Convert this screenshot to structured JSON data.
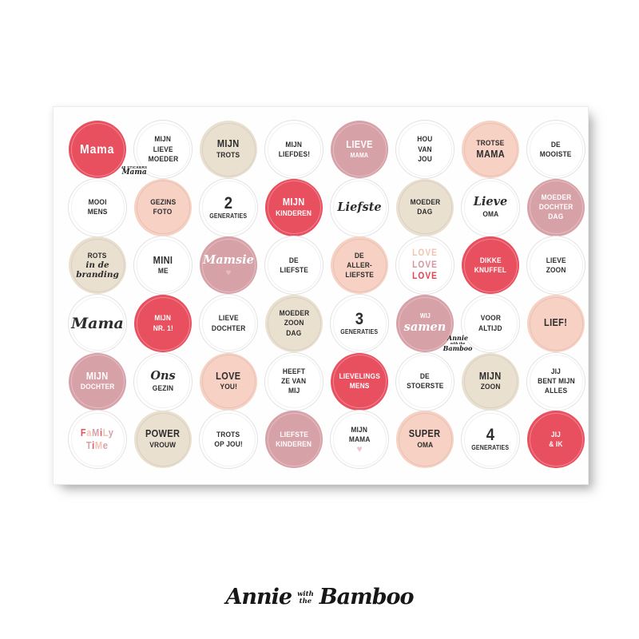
{
  "colors": {
    "red": "#e8505f",
    "rose": "#d7a1a8",
    "peach": "#f7d1c3",
    "cream": "#e9e0d0",
    "ink": "#2d2d2d",
    "love_peach": "#f2c3b2",
    "love_rose": "#d494a0",
    "love_red": "#e83f4e",
    "heart_on_rose": "#e3bcc1",
    "heart_pink": "#f3c2c9"
  },
  "sheet": {
    "corner_label": {
      "count": "48 STICKERS",
      "theme": "Mama"
    },
    "mini_signature": {
      "line1": "Annie",
      "line2": "with the",
      "line3": "Bamboo"
    },
    "stickers": [
      {
        "id": "mama",
        "bg": "red",
        "lines": [
          {
            "t": "Mama",
            "s": "mark"
          }
        ]
      },
      {
        "id": "mijn-lieve-moeder",
        "bg": "white",
        "lines": [
          {
            "t": "MIJN"
          },
          {
            "t": "LIEVE"
          },
          {
            "t": "MOEDER"
          }
        ]
      },
      {
        "id": "mijn-trots",
        "bg": "cream",
        "lines": [
          {
            "t": "MIJN",
            "s": "bold"
          },
          {
            "t": "TROTS"
          }
        ]
      },
      {
        "id": "mijn-liefdes",
        "bg": "white",
        "lines": [
          {
            "t": "MIJN"
          },
          {
            "t": "LIEFDES!"
          }
        ]
      },
      {
        "id": "lieve-mama",
        "bg": "rose",
        "lines": [
          {
            "t": "LIEVE",
            "s": "bold"
          },
          {
            "t": "MAMA",
            "s": "small"
          }
        ]
      },
      {
        "id": "hou-van-jou",
        "bg": "white",
        "lines": [
          {
            "t": "HOU"
          },
          {
            "t": "VAN"
          },
          {
            "t": "JOU"
          }
        ]
      },
      {
        "id": "trotse-mama",
        "bg": "peach",
        "lines": [
          {
            "t": "TROTSE"
          },
          {
            "t": "MAMA",
            "s": "bold"
          }
        ]
      },
      {
        "id": "de-mooiste",
        "bg": "white",
        "lines": [
          {
            "t": "DE"
          },
          {
            "t": "MOOISTE"
          }
        ]
      },
      {
        "id": "mooi-mens",
        "bg": "white",
        "lines": [
          {
            "t": "MOOI"
          },
          {
            "t": "MENS"
          }
        ]
      },
      {
        "id": "gezins-foto",
        "bg": "peach",
        "lines": [
          {
            "t": "GEZINS"
          },
          {
            "t": "FOTO"
          }
        ]
      },
      {
        "id": "2-generaties",
        "bg": "white",
        "lines": [
          {
            "t": "2",
            "s": "big"
          },
          {
            "t": "GENERATIES",
            "s": "small"
          }
        ]
      },
      {
        "id": "mijn-kinderen",
        "bg": "red",
        "lines": [
          {
            "t": "MIJN",
            "s": "bold"
          },
          {
            "t": "KINDEREN"
          }
        ]
      },
      {
        "id": "liefste",
        "bg": "white",
        "lines": [
          {
            "t": "Liefste",
            "s": "script"
          }
        ]
      },
      {
        "id": "moeder-dag",
        "bg": "cream",
        "lines": [
          {
            "t": "MOEDER"
          },
          {
            "t": "DAG"
          }
        ]
      },
      {
        "id": "lieve-oma",
        "bg": "white",
        "lines": [
          {
            "t": "Lieve",
            "s": "script"
          },
          {
            "t": "OMA"
          }
        ]
      },
      {
        "id": "moeder-dochter-dag",
        "bg": "rose",
        "lines": [
          {
            "t": "MOEDER"
          },
          {
            "t": "DOCHTER"
          },
          {
            "t": "DAG"
          }
        ]
      },
      {
        "id": "rots-in-de-branding",
        "bg": "cream",
        "lines": [
          {
            "t": "ROTS"
          },
          {
            "t": "in de",
            "s": "script-sm"
          },
          {
            "t": "branding",
            "s": "script-sm"
          }
        ]
      },
      {
        "id": "mini-me",
        "bg": "white",
        "lines": [
          {
            "t": "MINI",
            "s": "bold"
          },
          {
            "t": "ME"
          }
        ]
      },
      {
        "id": "mamsie",
        "bg": "rose",
        "lines": [
          {
            "t": "Mamsie",
            "s": "script"
          },
          {
            "t": "♥",
            "s": "heart",
            "c": "#e3bcc1"
          }
        ]
      },
      {
        "id": "de-liefste",
        "bg": "white",
        "lines": [
          {
            "t": "DE"
          },
          {
            "t": "LIEFSTE"
          }
        ]
      },
      {
        "id": "de-allerliefste",
        "bg": "peach",
        "lines": [
          {
            "t": "DE"
          },
          {
            "t": "ALLER-"
          },
          {
            "t": "LIEFSTE"
          }
        ]
      },
      {
        "id": "love-love-love",
        "bg": "white",
        "lines": [
          {
            "t": "LOVE",
            "s": "love",
            "c": "#f2c3b2"
          },
          {
            "t": "LOVE",
            "s": "love",
            "c": "#d494a0"
          },
          {
            "t": "LOVE",
            "s": "love",
            "c": "#e83f4e"
          }
        ]
      },
      {
        "id": "dikke-knuffel",
        "bg": "red",
        "lines": [
          {
            "t": "DIKKE"
          },
          {
            "t": "KNUFFEL"
          }
        ]
      },
      {
        "id": "lieve-zoon",
        "bg": "white",
        "lines": [
          {
            "t": "LIEVE"
          },
          {
            "t": "ZOON"
          }
        ]
      },
      {
        "id": "mama-script",
        "bg": "white",
        "lines": [
          {
            "t": "Mama",
            "s": "script-lg"
          }
        ]
      },
      {
        "id": "mijn-nr-1",
        "bg": "red",
        "lines": [
          {
            "t": "MIJN"
          },
          {
            "t": "NR. 1!"
          }
        ]
      },
      {
        "id": "lieve-dochter",
        "bg": "white",
        "lines": [
          {
            "t": "LIEVE"
          },
          {
            "t": "DOCHTER"
          }
        ]
      },
      {
        "id": "moeder-zoon-dag",
        "bg": "cream",
        "lines": [
          {
            "t": "MOEDER"
          },
          {
            "t": "ZOON"
          },
          {
            "t": "DAG"
          }
        ]
      },
      {
        "id": "3-generaties",
        "bg": "white",
        "lines": [
          {
            "t": "3",
            "s": "big"
          },
          {
            "t": "GENERATIES",
            "s": "small"
          }
        ]
      },
      {
        "id": "wij-samen",
        "bg": "rose",
        "lines": [
          {
            "t": "WIJ",
            "s": "small"
          },
          {
            "t": "samen",
            "s": "script"
          }
        ]
      },
      {
        "id": "voor-altijd",
        "bg": "white",
        "lines": [
          {
            "t": "VOOR"
          },
          {
            "t": "ALTIJD"
          }
        ]
      },
      {
        "id": "lief",
        "bg": "peach",
        "lines": [
          {
            "t": "LIEF!",
            "s": "bold"
          }
        ]
      },
      {
        "id": "mijn-dochter",
        "bg": "rose",
        "lines": [
          {
            "t": "MIJN",
            "s": "bold"
          },
          {
            "t": "DOCHTER"
          }
        ]
      },
      {
        "id": "ons-gezin",
        "bg": "white",
        "lines": [
          {
            "t": "Ons",
            "s": "script"
          },
          {
            "t": "GEZIN"
          }
        ]
      },
      {
        "id": "love-you",
        "bg": "peach",
        "lines": [
          {
            "t": "LOVE",
            "s": "bold"
          },
          {
            "t": "YOU!"
          }
        ]
      },
      {
        "id": "heeft-ze-van-mij",
        "bg": "white",
        "lines": [
          {
            "t": "HEEFT"
          },
          {
            "t": "ZE VAN"
          },
          {
            "t": "MIJ"
          }
        ]
      },
      {
        "id": "lievelings-mens",
        "bg": "red",
        "lines": [
          {
            "t": "LIEVELINGS"
          },
          {
            "t": "MENS"
          }
        ]
      },
      {
        "id": "de-stoerste",
        "bg": "white",
        "lines": [
          {
            "t": "DE"
          },
          {
            "t": "STOERSTE"
          }
        ]
      },
      {
        "id": "mijn-zoon",
        "bg": "cream",
        "lines": [
          {
            "t": "MIJN",
            "s": "bold"
          },
          {
            "t": "ZOON"
          }
        ]
      },
      {
        "id": "jij-bent-mijn-alles",
        "bg": "white",
        "lines": [
          {
            "t": "JIJ"
          },
          {
            "t": "BENT MIJN"
          },
          {
            "t": "ALLES"
          }
        ]
      },
      {
        "id": "family-time",
        "bg": "white",
        "lines": [
          {
            "t": "FaMiLy",
            "s": "multi",
            "cols": [
              "#e8505f",
              "#f2c3b2",
              "#d7a1a8",
              "#e8505f",
              "#f2c3b2",
              "#d7a1a8"
            ]
          },
          {
            "t": "TiMe",
            "s": "multi",
            "cols": [
              "#d7a1a8",
              "#e8505f",
              "#f2c3b2",
              "#d7a1a8"
            ]
          }
        ]
      },
      {
        "id": "power-vrouw",
        "bg": "cream",
        "lines": [
          {
            "t": "POWER",
            "s": "bold"
          },
          {
            "t": "VROUW"
          }
        ]
      },
      {
        "id": "trots-op-jou",
        "bg": "white",
        "lines": [
          {
            "t": "TROTS"
          },
          {
            "t": "OP JOU!"
          }
        ]
      },
      {
        "id": "liefste-kinderen",
        "bg": "rose",
        "lines": [
          {
            "t": "LIEFSTE"
          },
          {
            "t": "KINDEREN"
          }
        ]
      },
      {
        "id": "mijn-mama",
        "bg": "white",
        "lines": [
          {
            "t": "MIJN"
          },
          {
            "t": "MAMA"
          },
          {
            "t": "♥",
            "s": "heart",
            "c": "#f3c2c9"
          }
        ]
      },
      {
        "id": "super-oma",
        "bg": "peach",
        "lines": [
          {
            "t": "SUPER",
            "s": "bold"
          },
          {
            "t": "OMA"
          }
        ]
      },
      {
        "id": "4-generaties",
        "bg": "white",
        "lines": [
          {
            "t": "4",
            "s": "big"
          },
          {
            "t": "GENERATIES",
            "s": "small"
          }
        ]
      },
      {
        "id": "jij-en-ik",
        "bg": "red",
        "lines": [
          {
            "t": "JIJ"
          },
          {
            "t": "& IK"
          }
        ]
      }
    ]
  },
  "brand": {
    "first": "Annie",
    "mid1": "with",
    "mid2": "the",
    "last": "Bamboo"
  }
}
